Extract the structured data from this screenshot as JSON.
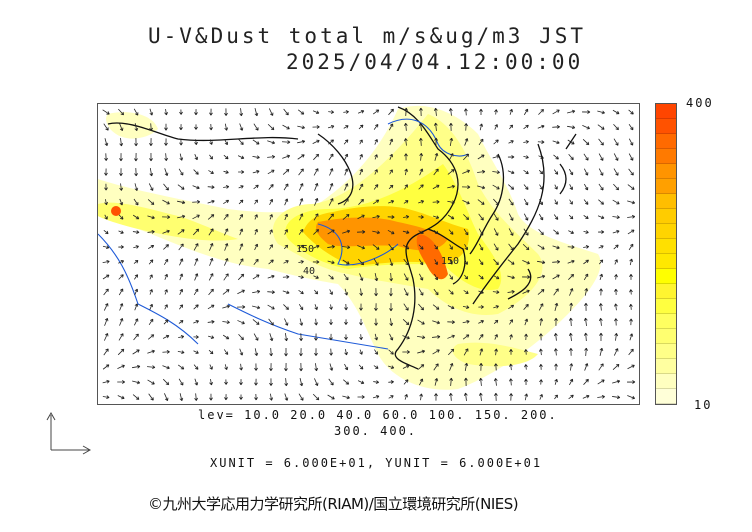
{
  "title": {
    "line1": "U-V&Dust total m/s&ug/m3 JST",
    "line2": "2025/04/04.12:00:00"
  },
  "colorbar": {
    "max_label": "400",
    "min_label": "10",
    "colors": [
      "#ff4500",
      "#ff5200",
      "#ff6a00",
      "#ff7a00",
      "#ff9400",
      "#ffa000",
      "#ffbe00",
      "#ffcc00",
      "#ffd400",
      "#ffe000",
      "#ffe800",
      "#ffff00",
      "#fff530",
      "#ffff40",
      "#ffff60",
      "#ffff70",
      "#ffff88",
      "#ffffa0",
      "#ffffc0",
      "#ffffd8"
    ]
  },
  "levels": {
    "line1": "lev= 10.0 20.0 40.0 60.0 100. 150. 200.",
    "line2": "300. 400."
  },
  "units": "XUNIT = 6.000E+01, YUNIT = 6.000E+01",
  "contour_labels": [
    "150",
    "40",
    "150"
  ],
  "credit": "©九州大学応用力学研究所(RIAM)/国立環境研究所(NIES)"
}
